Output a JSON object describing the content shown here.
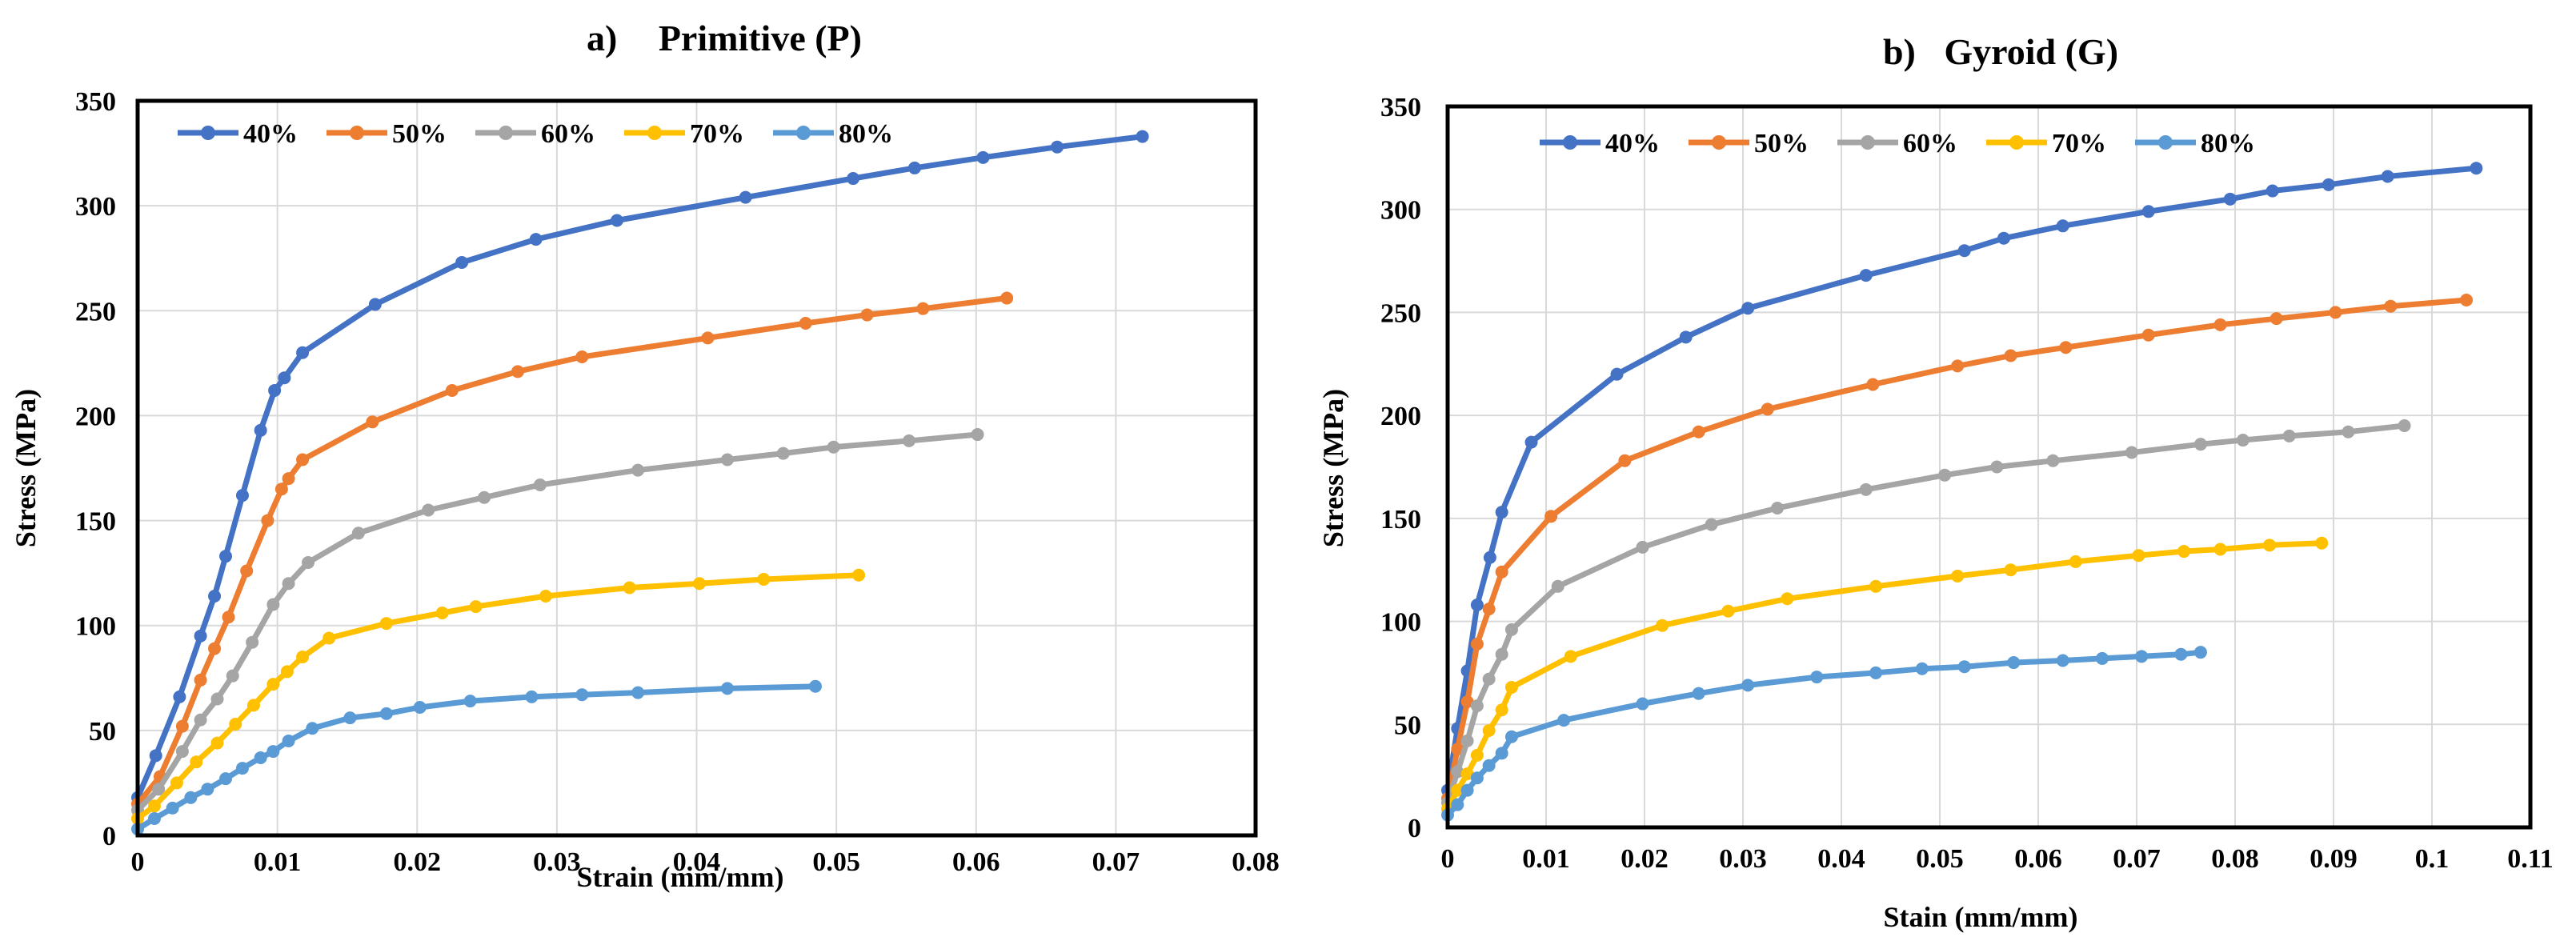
{
  "chart_data": [
    {
      "type": "line",
      "title_prefix": "a)",
      "title": "Primitive (P)",
      "xlabel": "Strain  (mm/mm)",
      "ylabel": "Stress (MPa)",
      "xlim": [
        0,
        0.08
      ],
      "ylim": [
        0,
        350
      ],
      "xticks": [
        0,
        0.01,
        0.02,
        0.03,
        0.04,
        0.05,
        0.06,
        0.07,
        0.08
      ],
      "yticks": [
        0,
        50,
        100,
        150,
        200,
        250,
        300,
        350
      ],
      "grid": "vertical-and-horizontal",
      "legend": "top-left",
      "series": [
        {
          "name": "40%",
          "color": "#4472C4",
          "x": [
            0,
            0.0013,
            0.003,
            0.0045,
            0.0055,
            0.0063,
            0.0075,
            0.0088,
            0.0098,
            0.0105,
            0.0118,
            0.017,
            0.0232,
            0.0285,
            0.0343,
            0.0435,
            0.0512,
            0.0556,
            0.0605,
            0.0658,
            0.0719
          ],
          "y": [
            18,
            38,
            66,
            95,
            114,
            133,
            162,
            193,
            212,
            218,
            230,
            253,
            273,
            284,
            293,
            304,
            313,
            318,
            323,
            328,
            333
          ]
        },
        {
          "name": "50%",
          "color": "#ED7D31",
          "x": [
            0,
            0.0016,
            0.0032,
            0.0045,
            0.0055,
            0.0065,
            0.0078,
            0.0093,
            0.0103,
            0.0108,
            0.0118,
            0.0168,
            0.0225,
            0.0272,
            0.0318,
            0.0408,
            0.0478,
            0.0522,
            0.0562,
            0.0622
          ],
          "y": [
            15,
            28,
            52,
            74,
            89,
            104,
            126,
            150,
            165,
            170,
            179,
            197,
            212,
            221,
            228,
            237,
            244,
            248,
            251,
            256
          ]
        },
        {
          "name": "60%",
          "color": "#A5A5A5",
          "x": [
            0,
            0.0015,
            0.0032,
            0.0045,
            0.0057,
            0.0068,
            0.0082,
            0.0097,
            0.0108,
            0.0122,
            0.0158,
            0.0208,
            0.0248,
            0.0288,
            0.0358,
            0.0422,
            0.0462,
            0.0498,
            0.0552,
            0.0601
          ],
          "y": [
            12,
            22,
            40,
            55,
            65,
            76,
            92,
            110,
            120,
            130,
            144,
            155,
            161,
            167,
            174,
            179,
            182,
            185,
            188,
            191
          ]
        },
        {
          "name": "70%",
          "color": "#FFC000",
          "x": [
            0,
            0.0012,
            0.0028,
            0.0042,
            0.0057,
            0.007,
            0.0083,
            0.0097,
            0.0107,
            0.0118,
            0.0137,
            0.0178,
            0.0218,
            0.0242,
            0.0292,
            0.0352,
            0.0402,
            0.0448,
            0.0516
          ],
          "y": [
            8,
            14,
            25,
            35,
            44,
            53,
            62,
            72,
            78,
            85,
            94,
            101,
            106,
            109,
            114,
            118,
            120,
            122,
            124
          ]
        },
        {
          "name": "80%",
          "color": "#5B9BD5",
          "x": [
            0,
            0.0012,
            0.0025,
            0.0038,
            0.005,
            0.0063,
            0.0075,
            0.0088,
            0.0097,
            0.0108,
            0.0125,
            0.0152,
            0.0178,
            0.0202,
            0.0238,
            0.0282,
            0.0318,
            0.0358,
            0.0422,
            0.0485
          ],
          "y": [
            3,
            8,
            13,
            18,
            22,
            27,
            32,
            37,
            40,
            45,
            51,
            56,
            58,
            61,
            64,
            66,
            67,
            68,
            70,
            71
          ]
        }
      ]
    },
    {
      "type": "line",
      "title_prefix": "b)",
      "title": "Gyroid (G)",
      "xlabel": "Stain (mm/mm)",
      "ylabel": "Stress (MPa)",
      "xlim": [
        0,
        0.11
      ],
      "ylim": [
        0,
        350
      ],
      "xticks": [
        0,
        0.01,
        0.02,
        0.03,
        0.04,
        0.05,
        0.06,
        0.07,
        0.08,
        0.09,
        0.1,
        0.11
      ],
      "yticks": [
        0,
        50,
        100,
        150,
        200,
        250,
        300,
        350
      ],
      "grid": "vertical-and-horizontal",
      "legend": "top-left",
      "series": [
        {
          "name": "40%",
          "color": "#4472C4",
          "x": [
            0,
            0.001,
            0.002,
            0.003,
            0.0043,
            0.0055,
            0.0085,
            0.0172,
            0.0242,
            0.0305,
            0.0425,
            0.0525,
            0.0565,
            0.0625,
            0.0712,
            0.0795,
            0.0838,
            0.0895,
            0.0955,
            0.1045
          ],
          "y": [
            18,
            48,
            76,
            108,
            131,
            153,
            187,
            220,
            238,
            252,
            268,
            280,
            286,
            292,
            299,
            305,
            309,
            312,
            316,
            320
          ]
        },
        {
          "name": "50%",
          "color": "#ED7D31",
          "x": [
            0,
            0.001,
            0.002,
            0.003,
            0.0042,
            0.0055,
            0.0105,
            0.018,
            0.0255,
            0.0325,
            0.0432,
            0.0518,
            0.0572,
            0.0628,
            0.0712,
            0.0785,
            0.0842,
            0.0902,
            0.0958,
            0.1035
          ],
          "y": [
            14,
            38,
            61,
            89,
            106,
            124,
            151,
            178,
            192,
            203,
            215,
            224,
            229,
            233,
            239,
            244,
            247,
            250,
            253,
            256
          ]
        },
        {
          "name": "60%",
          "color": "#A5A5A5",
          "x": [
            0,
            0.001,
            0.002,
            0.003,
            0.0042,
            0.0055,
            0.0065,
            0.0112,
            0.0198,
            0.0268,
            0.0335,
            0.0425,
            0.0505,
            0.0558,
            0.0615,
            0.0695,
            0.0765,
            0.0808,
            0.0855,
            0.0915,
            0.0972
          ],
          "y": [
            12,
            27,
            42,
            59,
            72,
            84,
            96,
            117,
            136,
            147,
            155,
            164,
            171,
            175,
            178,
            182,
            186,
            188,
            190,
            192,
            195
          ]
        },
        {
          "name": "70%",
          "color": "#FFC000",
          "x": [
            0,
            0.001,
            0.002,
            0.003,
            0.0042,
            0.0055,
            0.0065,
            0.0125,
            0.0218,
            0.0285,
            0.0345,
            0.0435,
            0.0518,
            0.0572,
            0.0638,
            0.0702,
            0.0748,
            0.0785,
            0.0835,
            0.0888
          ],
          "y": [
            9,
            18,
            26,
            35,
            47,
            57,
            68,
            83,
            98,
            105,
            111,
            117,
            122,
            125,
            129,
            132,
            134,
            135,
            137,
            138
          ]
        },
        {
          "name": "80%",
          "color": "#5B9BD5",
          "x": [
            0,
            0.001,
            0.002,
            0.003,
            0.0042,
            0.0055,
            0.0065,
            0.0118,
            0.0198,
            0.0255,
            0.0305,
            0.0375,
            0.0435,
            0.0482,
            0.0525,
            0.0575,
            0.0625,
            0.0665,
            0.0705,
            0.0745,
            0.0765
          ],
          "y": [
            6,
            11,
            18,
            24,
            30,
            36,
            44,
            52,
            60,
            65,
            69,
            73,
            75,
            77,
            78,
            80,
            81,
            82,
            83,
            84,
            85
          ]
        }
      ]
    }
  ]
}
